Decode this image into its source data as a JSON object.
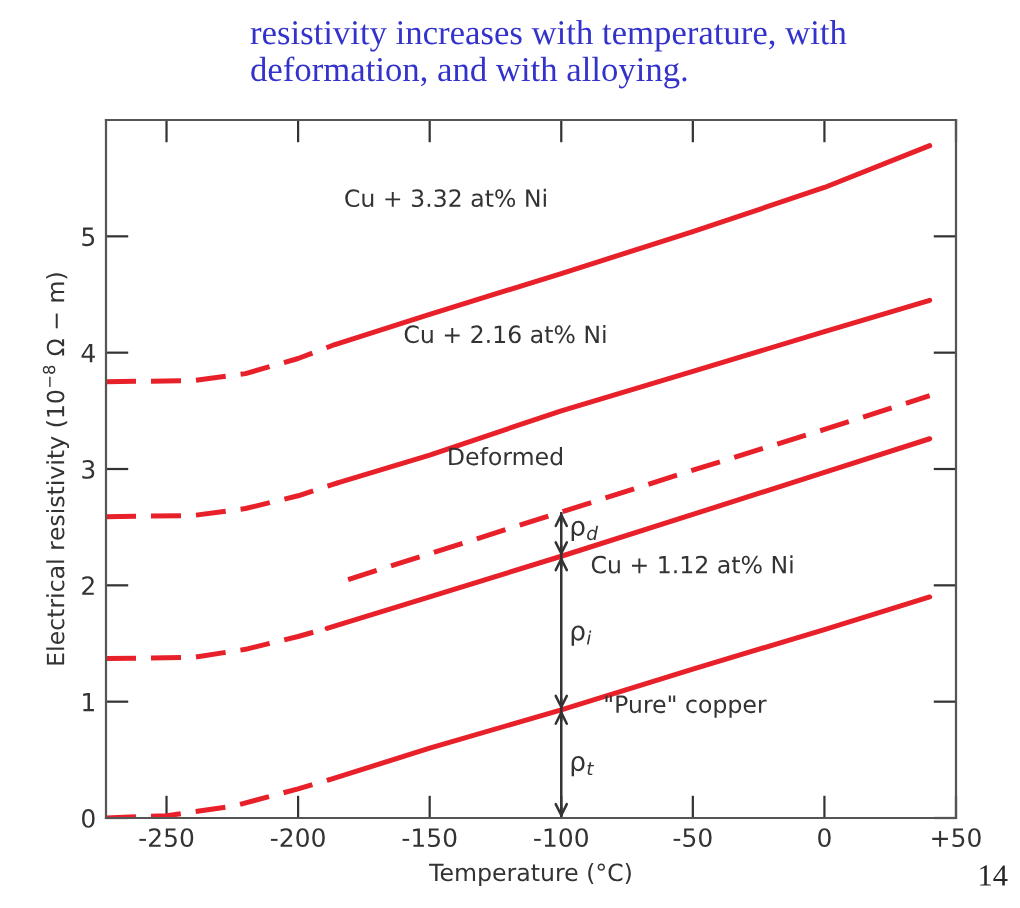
{
  "chart_data": {
    "type": "line",
    "title": "resistivity increases with temperature, with deformation, and with alloying.",
    "xlabel": "Temperature (°C)",
    "ylabel": "Electrical resistivity (10$^{−8}$ Ω − m)",
    "xlim": [
      -273,
      50
    ],
    "ylim": [
      0,
      6
    ],
    "xticks": [
      -250,
      -200,
      -150,
      -100,
      -50,
      0,
      {
        "value": 50,
        "label": "+50"
      }
    ],
    "yticks": [
      0,
      1,
      2,
      3,
      4,
      5
    ],
    "grid": false,
    "series": [
      {
        "color": "#e8202a",
        "line_style": "dashed",
        "x": [
          -273,
          -250,
          -225,
          -200,
          -188
        ],
        "values": [
          0,
          0.02,
          0.1,
          0.25,
          0.33
        ]
      },
      {
        "color": "#e8202a",
        "line_style": "solid",
        "x": [
          -188,
          -150,
          -100,
          -50,
          0,
          40
        ],
        "values": [
          0.33,
          0.6,
          0.93,
          1.28,
          1.62,
          1.9
        ]
      },
      {
        "color": "#e8202a",
        "line_style": "dashed",
        "x": [
          -273,
          -240,
          -220,
          -200,
          -189
        ],
        "values": [
          1.37,
          1.38,
          1.45,
          1.56,
          1.63
        ]
      },
      {
        "color": "#e8202a",
        "line_style": "solid",
        "x": [
          -189,
          -150,
          -100,
          -50,
          0,
          40
        ],
        "values": [
          1.63,
          1.9,
          2.25,
          2.61,
          2.97,
          3.26
        ]
      },
      {
        "color": "#e8202a",
        "line_style": "dashed",
        "x": [
          -181,
          -100,
          -50,
          0,
          40
        ],
        "values": [
          2.05,
          2.63,
          2.99,
          3.34,
          3.63
        ]
      },
      {
        "color": "#e8202a",
        "line_style": "dashed",
        "x": [
          -273,
          -240,
          -220,
          -200,
          -185
        ],
        "values": [
          2.59,
          2.6,
          2.66,
          2.77,
          2.88
        ]
      },
      {
        "color": "#e8202a",
        "line_style": "solid",
        "x": [
          -185,
          -150,
          -100,
          -50,
          0,
          40
        ],
        "values": [
          2.88,
          3.12,
          3.5,
          3.84,
          4.18,
          4.45
        ]
      },
      {
        "color": "#e8202a",
        "line_style": "dashed",
        "x": [
          -273,
          -240,
          -220,
          -200,
          -186
        ],
        "values": [
          3.75,
          3.76,
          3.82,
          3.95,
          4.07
        ]
      },
      {
        "color": "#e8202a",
        "line_style": "solid",
        "x": [
          -186,
          -150,
          -100,
          -50,
          0,
          40
        ],
        "values": [
          4.07,
          4.33,
          4.68,
          5.04,
          5.42,
          5.78
        ]
      }
    ],
    "ref_lines": [
      {
        "axis": "x",
        "value": -100
      }
    ],
    "annotations": [
      "Cu + 3.32 at% Ni",
      "Cu + 2.16 at% Ni",
      "Deformed",
      "Cu + 1.12 at% Ni",
      "\"Pure\" copper",
      "ρ$_{d}$",
      "ρ$_{i}$",
      "ρ$_{t}$",
      "14"
    ]
  }
}
